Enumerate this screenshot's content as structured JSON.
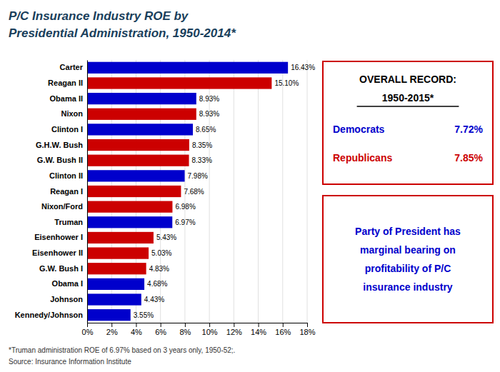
{
  "chart_data": {
    "type": "bar",
    "orientation": "horizontal",
    "title": "P/C Insurance Industry ROE by\nPresidential Administration, 1950-2014*",
    "categories": [
      "Kennedy/Johnson",
      "Johnson",
      "Obama I",
      "G.W. Bush I",
      "Eisenhower II",
      "Eisenhower I",
      "Truman",
      "Nixon/Ford",
      "Reagan I",
      "Clinton II",
      "G.W. Bush II",
      "G.H.W. Bush",
      "Clinton I",
      "Nixon",
      "Obama II",
      "Reagan II",
      "Carter"
    ],
    "values": [
      3.55,
      4.43,
      4.68,
      4.83,
      5.03,
      5.43,
      6.97,
      6.98,
      7.68,
      7.98,
      8.33,
      8.35,
      8.65,
      8.93,
      8.93,
      15.1,
      16.43
    ],
    "value_labels": [
      "3.55%",
      "4.43%",
      "4.68%",
      "4.83%",
      "5.03%",
      "5.43%",
      "6.97%",
      "6.98%",
      "7.68%",
      "7.98%",
      "8.33%",
      "8.35%",
      "8.65%",
      "8.93%",
      "8.93%",
      "15.10%",
      "16.43%"
    ],
    "colors": [
      "#0000CC",
      "#0000CC",
      "#0000CC",
      "#CC0000",
      "#CC0000",
      "#CC0000",
      "#0000CC",
      "#CC0000",
      "#CC0000",
      "#0000CC",
      "#CC0000",
      "#CC0000",
      "#0000CC",
      "#CC0000",
      "#0000CC",
      "#CC0000",
      "#0000CC"
    ],
    "data_labels": true,
    "xlim": [
      0,
      18
    ],
    "xticks": [
      {
        "value": 0,
        "label": "0%"
      },
      {
        "value": 2,
        "label": "2%"
      },
      {
        "value": 4,
        "label": "4%"
      },
      {
        "value": 6,
        "label": "6%"
      },
      {
        "value": 8,
        "label": "8%"
      },
      {
        "value": 10,
        "label": "10%"
      },
      {
        "value": 12,
        "label": "12%"
      },
      {
        "value": 14,
        "label": "14%"
      },
      {
        "value": 16,
        "label": "16%"
      },
      {
        "value": 18,
        "label": "18%"
      }
    ],
    "grid": true,
    "annotations": [
      "*Truman administration ROE of 6.97% based on 3 years only, 1950-52;.",
      "Source: Insurance Information Institute",
      "OVERALL RECORD:",
      "1950-2015*",
      "Democrats",
      "7.72%",
      "Republicans",
      "7.85%",
      "Party of President has\nmarginal bearing on\nprofitability of P/C\ninsurance industry"
    ]
  }
}
